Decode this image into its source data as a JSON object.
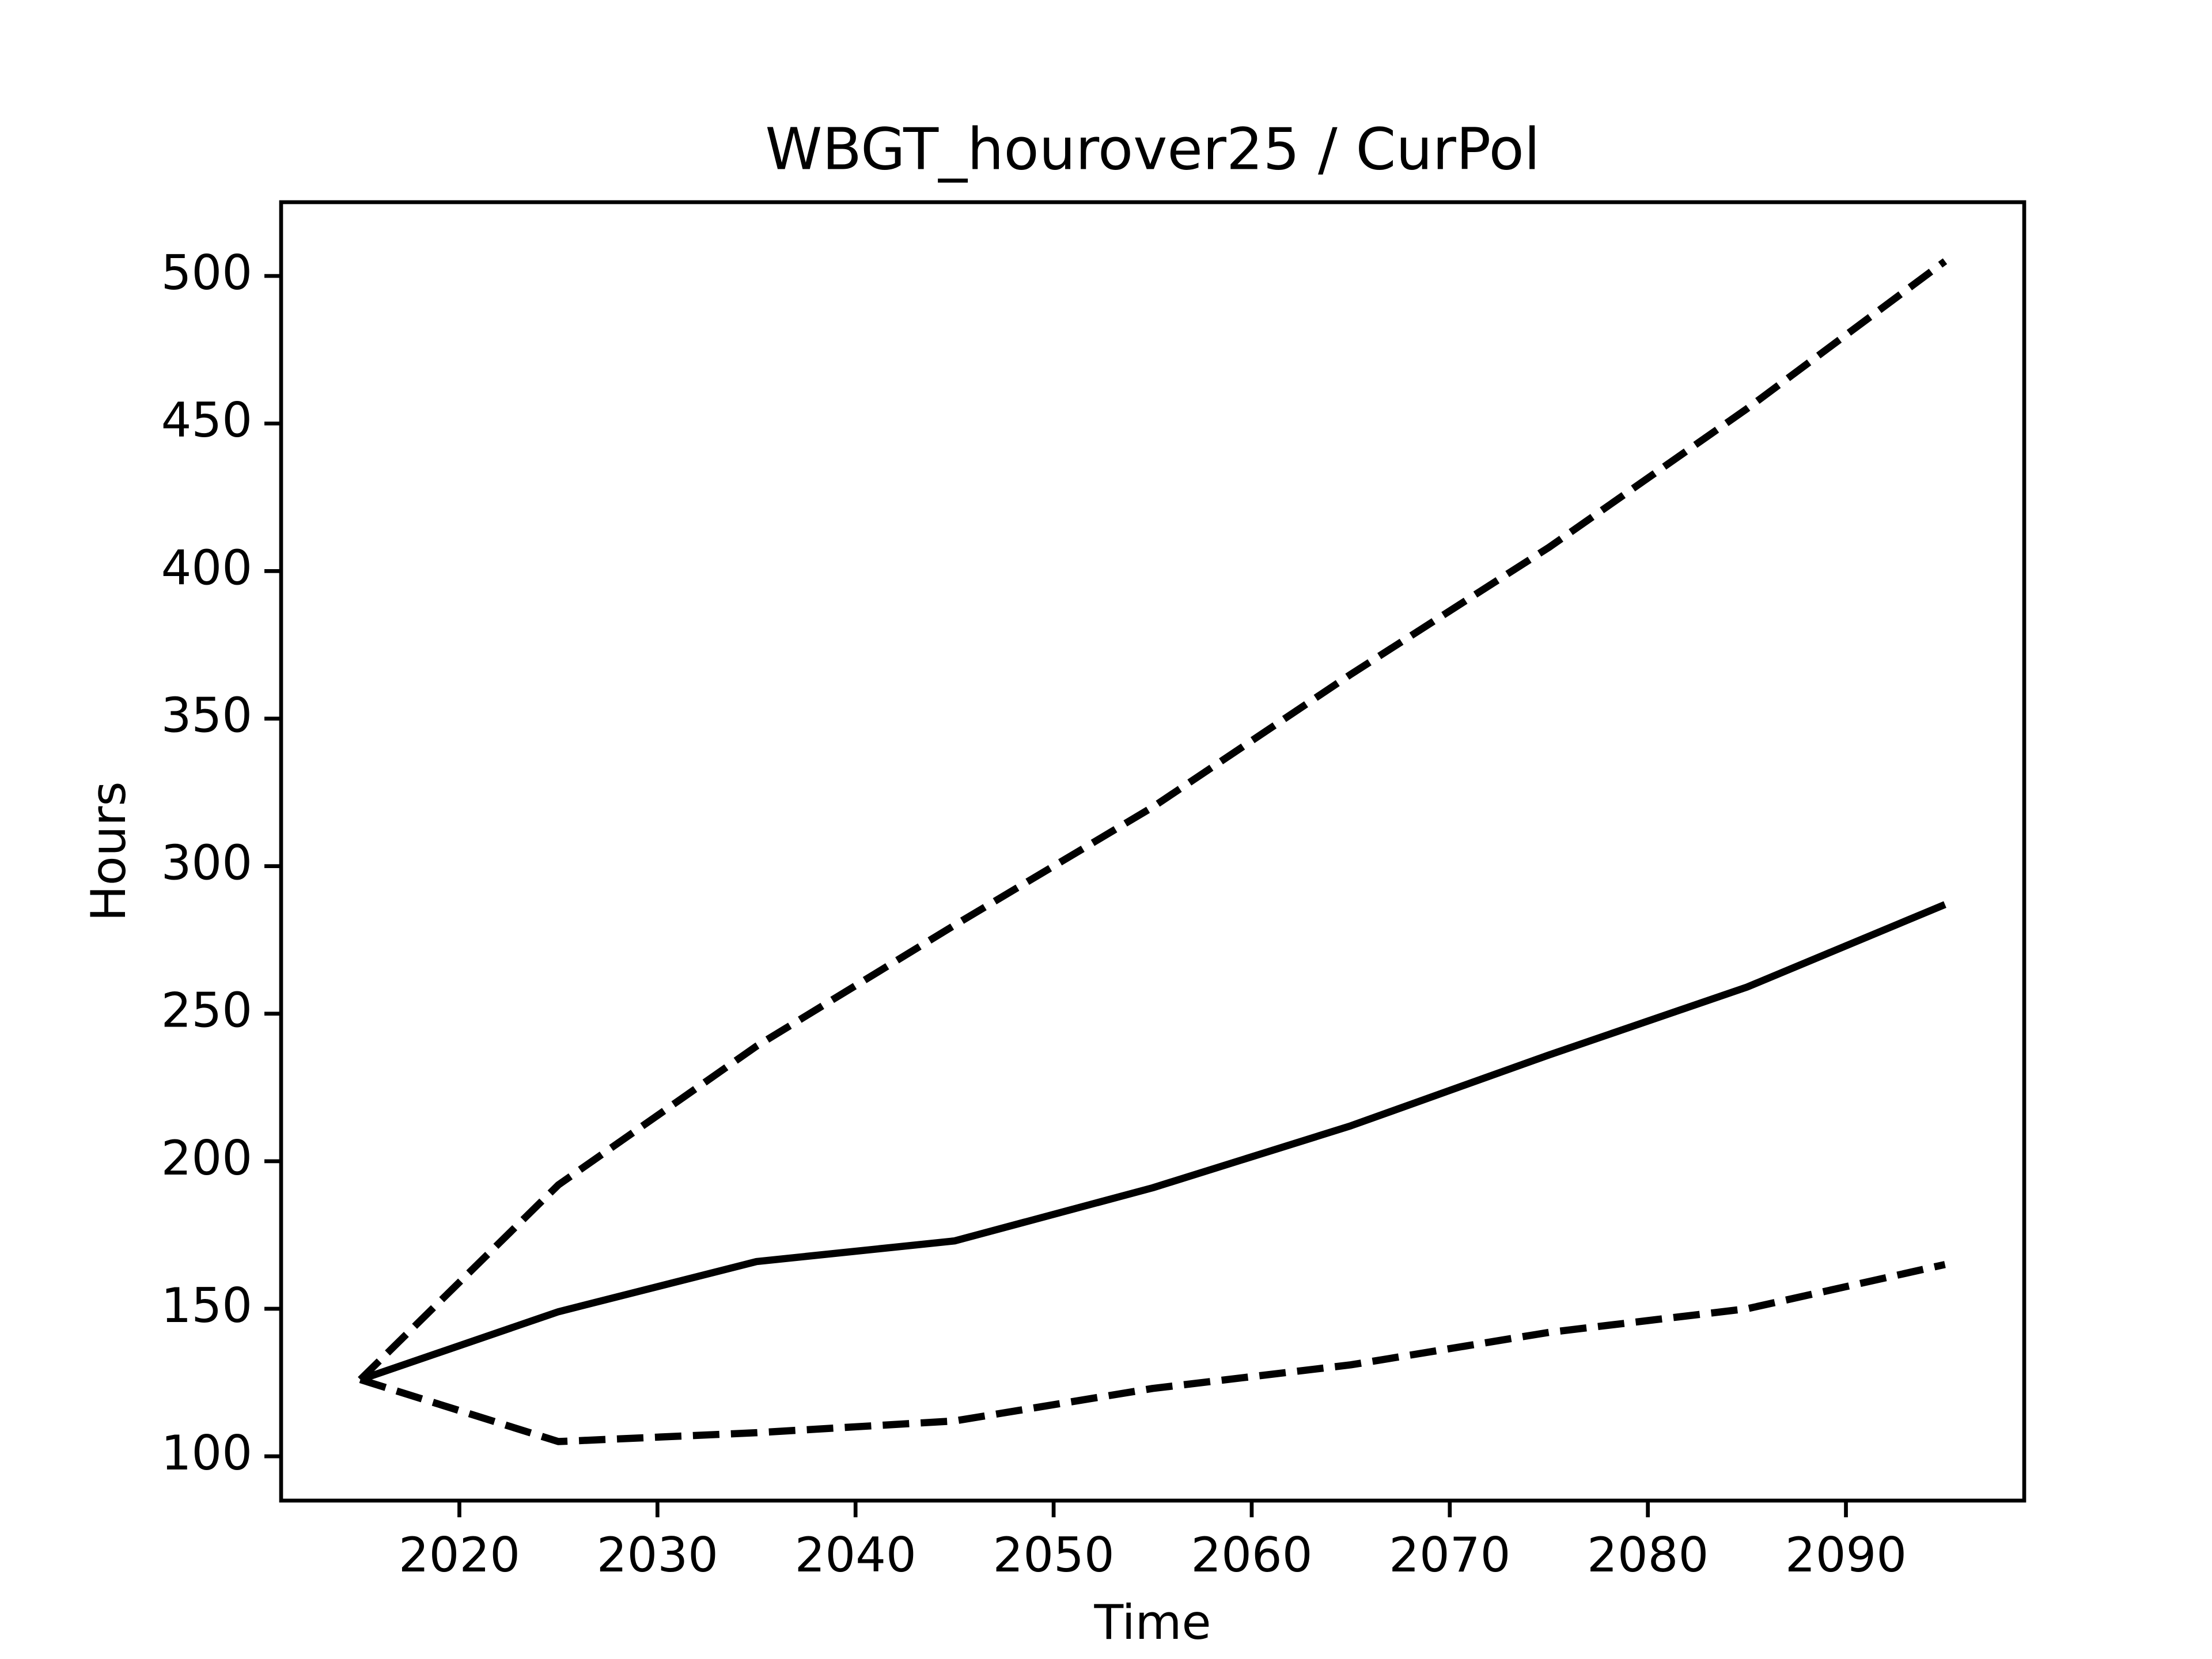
{
  "chart_data": {
    "type": "line",
    "title": "WBGT_hourover25 / CurPol",
    "x_label": "Time",
    "y_label": "Hours",
    "x": [
      2015,
      2025,
      2035,
      2045,
      2055,
      2065,
      2075,
      2085,
      2095
    ],
    "series": [
      {
        "color": "#000000",
        "dashed": false,
        "values": [
          126,
          149,
          166,
          173,
          191,
          212,
          236,
          259,
          287
        ]
      },
      {
        "color": "#000000",
        "dashed": true,
        "values": [
          126,
          192,
          239,
          280,
          320,
          365,
          408,
          455,
          505
        ]
      },
      {
        "color": "#000000",
        "dashed": true,
        "values": [
          126,
          105,
          108,
          112,
          123,
          131,
          142,
          150,
          165
        ]
      }
    ],
    "xlim": [
      2011,
      2099
    ],
    "xticks": [
      2020,
      2030,
      2040,
      2050,
      2060,
      2070,
      2080,
      2090
    ],
    "ylim": [
      85,
      525
    ],
    "yticks": [
      100,
      150,
      200,
      250,
      300,
      350,
      400,
      450,
      500
    ],
    "grid": false
  }
}
